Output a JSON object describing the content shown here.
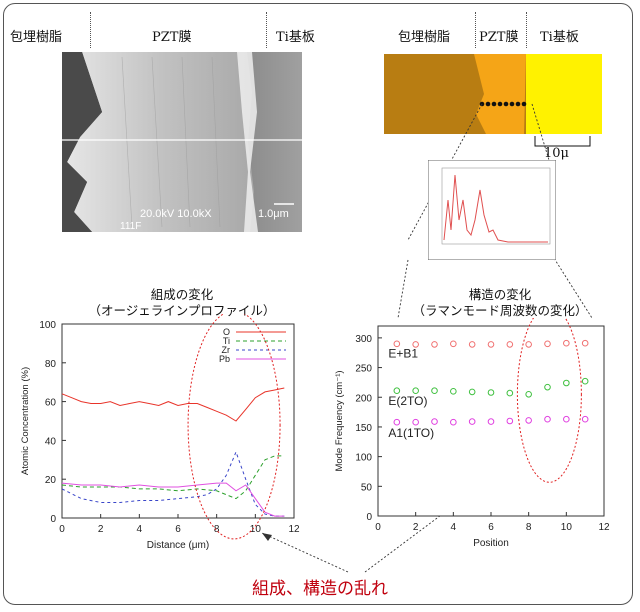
{
  "sem": {
    "label_resin": "包埋樹脂",
    "label_pzt": "PZT膜",
    "label_substrate": "Ti基板",
    "info": "20.0kV 10.0kX",
    "scale_text": "1.0μm",
    "id_text": "111F"
  },
  "optical": {
    "label_resin": "包埋樹脂",
    "label_pzt": "PZT膜",
    "label_substrate": "Ti基板",
    "scale_text": "10μ",
    "colors": {
      "resin": "#b87d12",
      "pzt": "#f5a517",
      "substrate": "#fff200"
    }
  },
  "composition": {
    "title": "組成の変化",
    "subtitle": "（オージェラインプロファイル）"
  },
  "structure": {
    "title": "構造の変化",
    "subtitle": "（ラマンモード周波数の変化）"
  },
  "note": "組成、構造の乱れ",
  "chart_data": [
    {
      "type": "line",
      "xlabel": "Distance (μm)",
      "ylabel": "Atomic Concentration (%)",
      "xlim": [
        0,
        12
      ],
      "ylim": [
        0,
        100
      ],
      "xticks": [
        "0",
        "2",
        "4",
        "6",
        "8",
        "10",
        "12"
      ],
      "yticks": [
        "0",
        "20",
        "40",
        "60",
        "80",
        "100"
      ],
      "legend_position": "top-right",
      "series": [
        {
          "name": "O",
          "color": "#e8342a",
          "dash": "solid",
          "x": [
            0,
            0.5,
            1,
            1.5,
            2,
            2.5,
            3,
            3.5,
            4,
            4.5,
            5,
            5.5,
            6,
            6.5,
            7,
            7.5,
            8,
            8.5,
            9,
            9.5,
            10,
            10.5,
            11,
            11.5
          ],
          "y": [
            64,
            62,
            60,
            59,
            59,
            60,
            58,
            59,
            60,
            59,
            58,
            60,
            58,
            59,
            59,
            57,
            55,
            53,
            50,
            56,
            62,
            65,
            66,
            67
          ]
        },
        {
          "name": "Ti",
          "color": "#2ca02c",
          "dash": "4,3",
          "x": [
            0,
            1,
            2,
            3,
            4,
            5,
            6,
            7,
            8,
            8.5,
            9,
            9.5,
            10,
            10.5,
            11,
            11.5
          ],
          "y": [
            17,
            16,
            16,
            16,
            15,
            15,
            14,
            15,
            14,
            12,
            10,
            14,
            22,
            30,
            32,
            32
          ]
        },
        {
          "name": "Zr",
          "color": "#3a46c9",
          "dash": "3,3",
          "x": [
            0,
            1,
            2,
            3,
            4,
            5,
            6,
            7,
            7.5,
            8,
            8.5,
            9,
            9.5,
            10,
            10.5,
            11,
            11.5
          ],
          "y": [
            15,
            10,
            8,
            8,
            9,
            9,
            10,
            11,
            12,
            15,
            22,
            34,
            20,
            7,
            2,
            1,
            1
          ]
        },
        {
          "name": "Pb",
          "color": "#e050e0",
          "dash": "solid",
          "x": [
            0,
            1,
            2,
            3,
            4,
            5,
            6,
            7,
            8,
            8.5,
            9,
            9.5,
            10,
            10.5,
            11,
            11.5
          ],
          "y": [
            18,
            17,
            17,
            16,
            17,
            16,
            16,
            17,
            18,
            18,
            14,
            17,
            10,
            3,
            1,
            1
          ]
        }
      ]
    },
    {
      "type": "scatter",
      "xlabel": "Position",
      "ylabel": "Mode Frequency (cm⁻¹)",
      "xlim": [
        0,
        12
      ],
      "ylim": [
        0,
        320
      ],
      "xticks": [
        "0",
        "2",
        "4",
        "6",
        "8",
        "10",
        "12"
      ],
      "yticks": [
        "0",
        "50",
        "100",
        "150",
        "200",
        "250",
        "300"
      ],
      "series": [
        {
          "name": "E+B1",
          "color": "#f07070",
          "x": [
            1,
            2,
            3,
            4,
            5,
            6,
            7,
            8,
            9,
            10,
            11
          ],
          "y": [
            290,
            289,
            289,
            290,
            289,
            289,
            289,
            289,
            290,
            291,
            291
          ]
        },
        {
          "name": "E(2TO)",
          "color": "#40c040",
          "x": [
            1,
            2,
            3,
            4,
            5,
            6,
            7,
            8,
            9,
            10,
            11
          ],
          "y": [
            211,
            211,
            211,
            210,
            209,
            208,
            207,
            205,
            217,
            224,
            227
          ]
        },
        {
          "name": "A1(1TO)",
          "color": "#e040e0",
          "x": [
            1,
            2,
            3,
            4,
            5,
            6,
            7,
            8,
            9,
            10,
            11
          ],
          "y": [
            158,
            158,
            159,
            158,
            159,
            159,
            160,
            161,
            163,
            163,
            163
          ]
        }
      ]
    }
  ]
}
